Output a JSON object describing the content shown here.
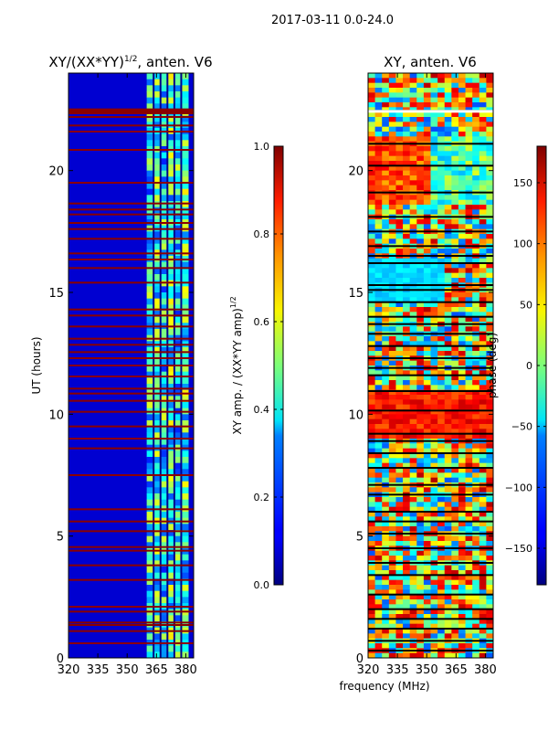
{
  "chart_data": [
    {
      "type": "heatmap",
      "suptitle": "2017-03-11 0.0-24.0",
      "title_main": "XY/(XX*YY)",
      "title_sup": "1/2",
      "title_tail": ", anten. V6",
      "xlabel": "",
      "ylabel": "UT (hours)",
      "xlim": [
        320,
        384
      ],
      "ylim": [
        0,
        24
      ],
      "xticks": [
        320,
        335,
        350,
        365,
        380
      ],
      "yticks": [
        0,
        5,
        10,
        15,
        20
      ],
      "colormap": "jet",
      "background_value_est": 0.08,
      "active_band_mhz_est": [
        360,
        384
      ],
      "flagged_ut_hours_est": [
        0.6,
        1.1,
        1.35,
        1.45,
        1.9,
        2.1,
        3.2,
        3.8,
        4.4,
        4.55,
        5.2,
        5.6,
        6.1,
        7.5,
        8.6,
        9.0,
        9.5,
        10.1,
        10.55,
        10.85,
        11.05,
        11.55,
        12.0,
        12.3,
        12.55,
        12.85,
        13.1,
        13.6,
        14.05,
        14.3,
        15.4,
        16.0,
        16.35,
        16.6,
        17.2,
        17.6,
        17.85,
        18.2,
        18.4,
        18.65,
        19.5,
        20.85,
        21.6,
        21.85,
        22.2,
        22.35,
        22.45
      ]
    },
    {
      "type": "heatmap",
      "title": "XY, anten. V6",
      "xlabel": "frequency (MHz)",
      "ylabel": "",
      "xlim": [
        320,
        384
      ],
      "ylim": [
        0,
        24
      ],
      "xticks": [
        320,
        335,
        350,
        365,
        380
      ],
      "yticks": [
        0,
        5,
        10,
        15,
        20
      ],
      "colormap": "jet",
      "value_range_deg": [
        -180,
        180
      ],
      "blank_ut_hours_est": [
        0.3,
        0.7,
        1.2,
        1.6,
        2.0,
        2.6,
        3.4,
        3.9,
        4.5,
        5.1,
        5.6,
        6.0,
        6.7,
        7.1,
        7.8,
        8.4,
        8.9,
        9.2,
        10.15,
        10.95,
        11.6,
        11.9,
        12.3,
        12.8,
        13.3,
        13.7,
        14.0,
        14.6,
        15.1,
        15.3,
        16.2,
        16.5,
        16.9,
        17.5,
        18.1,
        19.1,
        20.2,
        21.1,
        22.45
      ]
    }
  ],
  "colorbars": [
    {
      "label_main": "XY amp. / (XX*YY amp)",
      "label_sup": "1/2",
      "range": [
        0.0,
        1.0
      ],
      "ticks": [
        0.0,
        0.2,
        0.4,
        0.6,
        0.8,
        1.0
      ],
      "tick_labels": [
        "0.0",
        "0.2",
        "0.4",
        "0.6",
        "0.8",
        "1.0"
      ]
    },
    {
      "label": "phase (deg)",
      "range": [
        -180,
        180
      ],
      "ticks": [
        -150,
        -100,
        -50,
        0,
        50,
        100,
        150
      ],
      "tick_labels": [
        "−150",
        "−100",
        "−50",
        "0",
        "50",
        "100",
        "150"
      ]
    }
  ]
}
